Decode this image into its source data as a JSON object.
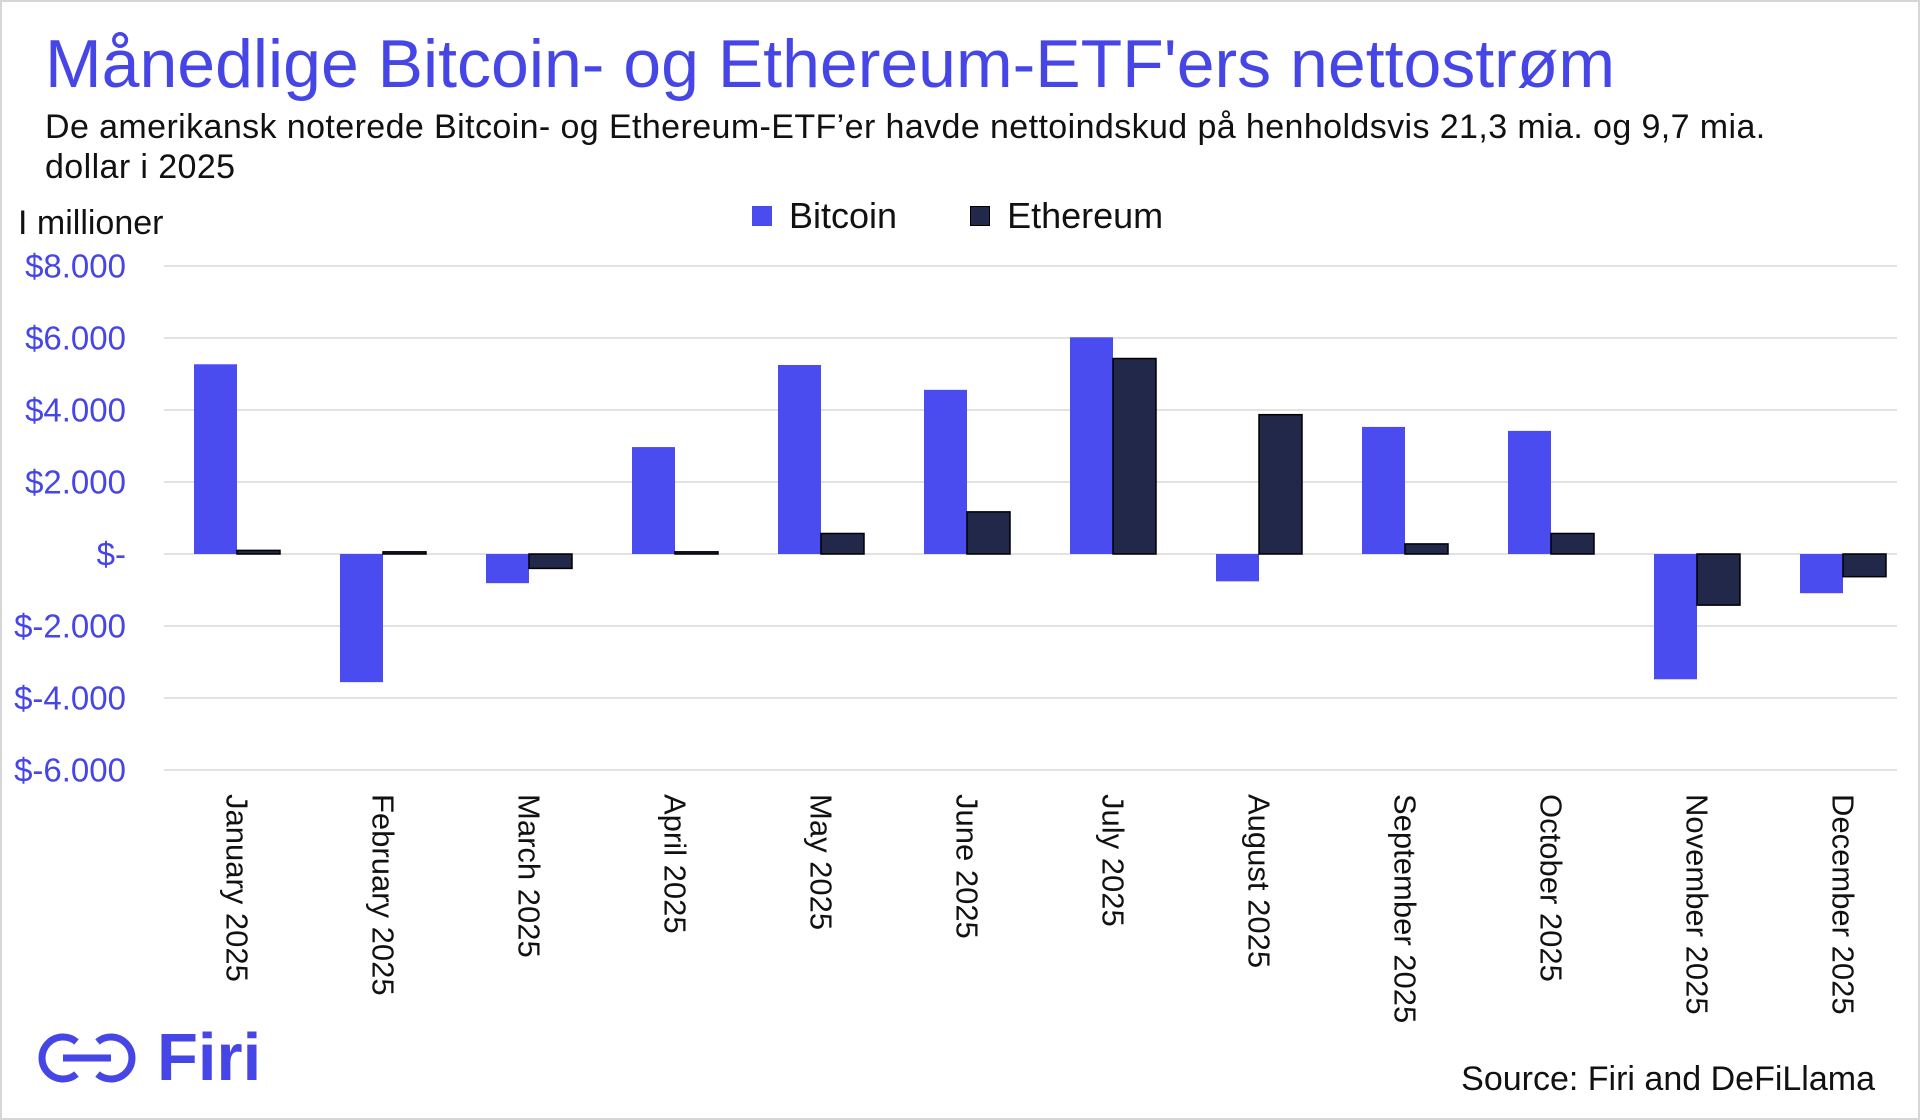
{
  "chart_data": {
    "type": "bar",
    "title": "Månedlige Bitcoin- og Ethereum-ETF'ers nettostrøm",
    "subtitle_lines": [
      "De amerikansk noterede Bitcoin- og Ethereum-ETF’er havde nettoindskud på henholdsvis 21,3 mia. og 9,7 mia.",
      "dollar i 2025"
    ],
    "ylabel": "I millioner",
    "xlabel": "",
    "ylim": [
      -6000,
      8000
    ],
    "yticks": [
      8000,
      6000,
      4000,
      2000,
      0,
      -2000,
      -4000,
      -6000
    ],
    "ytick_labels": [
      "$8.000",
      "$6.000",
      "$4.000",
      "$2.000",
      "$-",
      "$-2.000",
      "$-4.000",
      "$-6.000"
    ],
    "categories": [
      "January 2025",
      "February 2025",
      "March 2025",
      "April 2025",
      "May 2025",
      "June 2025",
      "July 2025",
      "August 2025",
      "September 2025",
      "October 2025",
      "November 2025",
      "December 2025"
    ],
    "series": [
      {
        "name": "Bitcoin",
        "color": "#4b4cf0",
        "values": [
          5270,
          -3560,
          -810,
          2970,
          5250,
          4560,
          6020,
          -760,
          3530,
          3420,
          -3480,
          -1090
        ]
      },
      {
        "name": "Ethereum",
        "color": "#22284a",
        "outline": "#000000",
        "values": [
          100,
          60,
          -400,
          60,
          570,
          1170,
          5430,
          3870,
          280,
          570,
          -1420,
          -630
        ]
      }
    ],
    "legend": "top-center",
    "grid": true,
    "source": "Source: Firi and DeFiLlama"
  },
  "brand": {
    "name": "Firi",
    "icon": "firi-logo-icon",
    "color": "#4646e6"
  },
  "colors": {
    "accent": "#4646e6",
    "grid": "#d9d9d9",
    "text": "#111111"
  }
}
